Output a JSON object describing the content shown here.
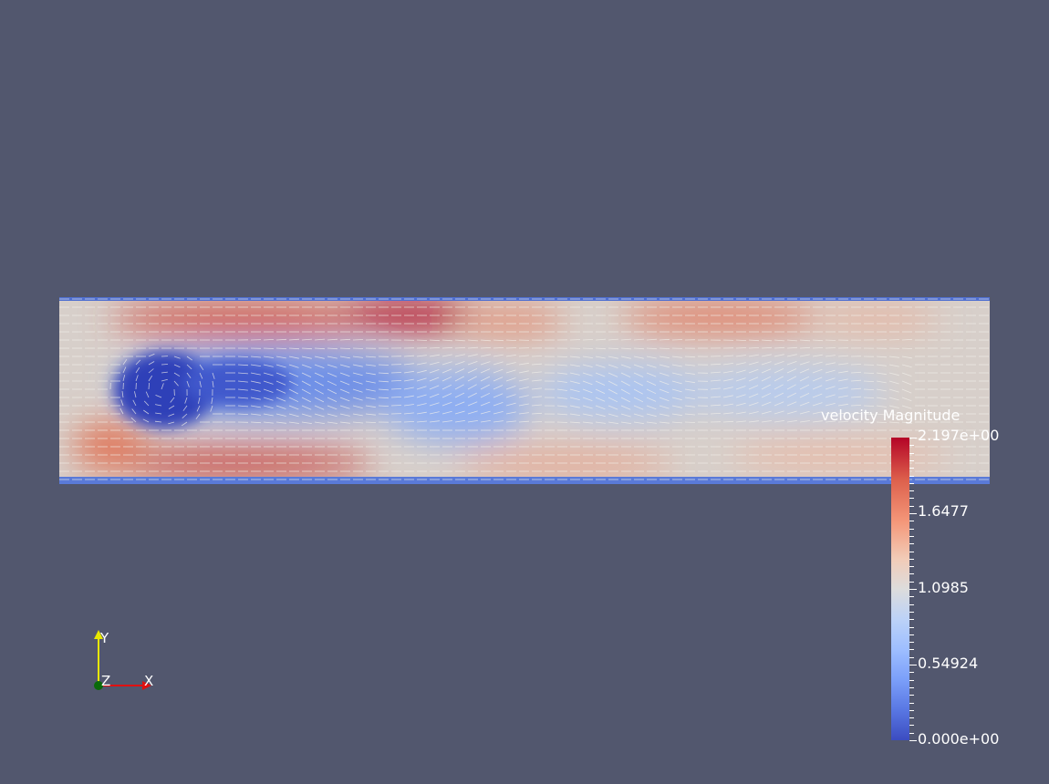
{
  "colorbar": {
    "title": "velocity Magnitude",
    "max_label": "2.197e+00",
    "min_label": "0.000e+00",
    "tick_labels": [
      "1.6477",
      "1.0985",
      "0.54924"
    ],
    "range": [
      0,
      2.197
    ],
    "colormap": "cool-to-warm",
    "colors": {
      "low": "#3b4cc0",
      "mid": "#dddcdc",
      "high": "#b40426"
    }
  },
  "orientation_axes": {
    "x_label": "X",
    "y_label": "Y",
    "z_label": "Z",
    "colors": {
      "x": "#e01010",
      "y": "#e8e800",
      "z": "#0a6a0a"
    }
  },
  "background_color": "#52576e",
  "field": {
    "type": "velocity magnitude heatmap with glyph arrows",
    "flow_direction": "left-to-right"
  }
}
